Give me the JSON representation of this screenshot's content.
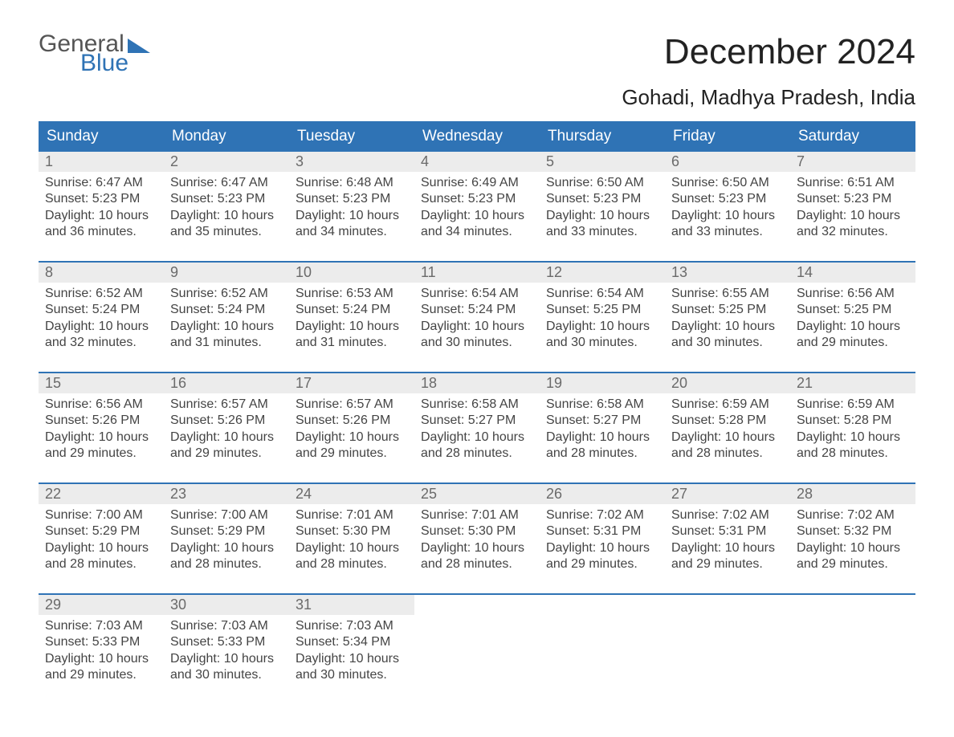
{
  "logo": {
    "general": "General",
    "blue": "Blue"
  },
  "title": "December 2024",
  "location": "Gohadi, Madhya Pradesh, India",
  "colors": {
    "header_bg": "#2f73b5",
    "header_text": "#ffffff",
    "daynum_bg": "#ececec",
    "daynum_text": "#6a6a6a",
    "body_text": "#444444",
    "rule": "#2f73b5",
    "page_bg": "#ffffff"
  },
  "typography": {
    "title_fontsize": 44,
    "location_fontsize": 26,
    "dow_fontsize": 19,
    "daynum_fontsize": 18,
    "body_fontsize": 16
  },
  "dow": [
    "Sunday",
    "Monday",
    "Tuesday",
    "Wednesday",
    "Thursday",
    "Friday",
    "Saturday"
  ],
  "weeks": [
    [
      {
        "n": "1",
        "sr": "Sunrise: 6:47 AM",
        "ss": "Sunset: 5:23 PM",
        "d1": "Daylight: 10 hours",
        "d2": "and 36 minutes."
      },
      {
        "n": "2",
        "sr": "Sunrise: 6:47 AM",
        "ss": "Sunset: 5:23 PM",
        "d1": "Daylight: 10 hours",
        "d2": "and 35 minutes."
      },
      {
        "n": "3",
        "sr": "Sunrise: 6:48 AM",
        "ss": "Sunset: 5:23 PM",
        "d1": "Daylight: 10 hours",
        "d2": "and 34 minutes."
      },
      {
        "n": "4",
        "sr": "Sunrise: 6:49 AM",
        "ss": "Sunset: 5:23 PM",
        "d1": "Daylight: 10 hours",
        "d2": "and 34 minutes."
      },
      {
        "n": "5",
        "sr": "Sunrise: 6:50 AM",
        "ss": "Sunset: 5:23 PM",
        "d1": "Daylight: 10 hours",
        "d2": "and 33 minutes."
      },
      {
        "n": "6",
        "sr": "Sunrise: 6:50 AM",
        "ss": "Sunset: 5:23 PM",
        "d1": "Daylight: 10 hours",
        "d2": "and 33 minutes."
      },
      {
        "n": "7",
        "sr": "Sunrise: 6:51 AM",
        "ss": "Sunset: 5:23 PM",
        "d1": "Daylight: 10 hours",
        "d2": "and 32 minutes."
      }
    ],
    [
      {
        "n": "8",
        "sr": "Sunrise: 6:52 AM",
        "ss": "Sunset: 5:24 PM",
        "d1": "Daylight: 10 hours",
        "d2": "and 32 minutes."
      },
      {
        "n": "9",
        "sr": "Sunrise: 6:52 AM",
        "ss": "Sunset: 5:24 PM",
        "d1": "Daylight: 10 hours",
        "d2": "and 31 minutes."
      },
      {
        "n": "10",
        "sr": "Sunrise: 6:53 AM",
        "ss": "Sunset: 5:24 PM",
        "d1": "Daylight: 10 hours",
        "d2": "and 31 minutes."
      },
      {
        "n": "11",
        "sr": "Sunrise: 6:54 AM",
        "ss": "Sunset: 5:24 PM",
        "d1": "Daylight: 10 hours",
        "d2": "and 30 minutes."
      },
      {
        "n": "12",
        "sr": "Sunrise: 6:54 AM",
        "ss": "Sunset: 5:25 PM",
        "d1": "Daylight: 10 hours",
        "d2": "and 30 minutes."
      },
      {
        "n": "13",
        "sr": "Sunrise: 6:55 AM",
        "ss": "Sunset: 5:25 PM",
        "d1": "Daylight: 10 hours",
        "d2": "and 30 minutes."
      },
      {
        "n": "14",
        "sr": "Sunrise: 6:56 AM",
        "ss": "Sunset: 5:25 PM",
        "d1": "Daylight: 10 hours",
        "d2": "and 29 minutes."
      }
    ],
    [
      {
        "n": "15",
        "sr": "Sunrise: 6:56 AM",
        "ss": "Sunset: 5:26 PM",
        "d1": "Daylight: 10 hours",
        "d2": "and 29 minutes."
      },
      {
        "n": "16",
        "sr": "Sunrise: 6:57 AM",
        "ss": "Sunset: 5:26 PM",
        "d1": "Daylight: 10 hours",
        "d2": "and 29 minutes."
      },
      {
        "n": "17",
        "sr": "Sunrise: 6:57 AM",
        "ss": "Sunset: 5:26 PM",
        "d1": "Daylight: 10 hours",
        "d2": "and 29 minutes."
      },
      {
        "n": "18",
        "sr": "Sunrise: 6:58 AM",
        "ss": "Sunset: 5:27 PM",
        "d1": "Daylight: 10 hours",
        "d2": "and 28 minutes."
      },
      {
        "n": "19",
        "sr": "Sunrise: 6:58 AM",
        "ss": "Sunset: 5:27 PM",
        "d1": "Daylight: 10 hours",
        "d2": "and 28 minutes."
      },
      {
        "n": "20",
        "sr": "Sunrise: 6:59 AM",
        "ss": "Sunset: 5:28 PM",
        "d1": "Daylight: 10 hours",
        "d2": "and 28 minutes."
      },
      {
        "n": "21",
        "sr": "Sunrise: 6:59 AM",
        "ss": "Sunset: 5:28 PM",
        "d1": "Daylight: 10 hours",
        "d2": "and 28 minutes."
      }
    ],
    [
      {
        "n": "22",
        "sr": "Sunrise: 7:00 AM",
        "ss": "Sunset: 5:29 PM",
        "d1": "Daylight: 10 hours",
        "d2": "and 28 minutes."
      },
      {
        "n": "23",
        "sr": "Sunrise: 7:00 AM",
        "ss": "Sunset: 5:29 PM",
        "d1": "Daylight: 10 hours",
        "d2": "and 28 minutes."
      },
      {
        "n": "24",
        "sr": "Sunrise: 7:01 AM",
        "ss": "Sunset: 5:30 PM",
        "d1": "Daylight: 10 hours",
        "d2": "and 28 minutes."
      },
      {
        "n": "25",
        "sr": "Sunrise: 7:01 AM",
        "ss": "Sunset: 5:30 PM",
        "d1": "Daylight: 10 hours",
        "d2": "and 28 minutes."
      },
      {
        "n": "26",
        "sr": "Sunrise: 7:02 AM",
        "ss": "Sunset: 5:31 PM",
        "d1": "Daylight: 10 hours",
        "d2": "and 29 minutes."
      },
      {
        "n": "27",
        "sr": "Sunrise: 7:02 AM",
        "ss": "Sunset: 5:31 PM",
        "d1": "Daylight: 10 hours",
        "d2": "and 29 minutes."
      },
      {
        "n": "28",
        "sr": "Sunrise: 7:02 AM",
        "ss": "Sunset: 5:32 PM",
        "d1": "Daylight: 10 hours",
        "d2": "and 29 minutes."
      }
    ],
    [
      {
        "n": "29",
        "sr": "Sunrise: 7:03 AM",
        "ss": "Sunset: 5:33 PM",
        "d1": "Daylight: 10 hours",
        "d2": "and 29 minutes."
      },
      {
        "n": "30",
        "sr": "Sunrise: 7:03 AM",
        "ss": "Sunset: 5:33 PM",
        "d1": "Daylight: 10 hours",
        "d2": "and 30 minutes."
      },
      {
        "n": "31",
        "sr": "Sunrise: 7:03 AM",
        "ss": "Sunset: 5:34 PM",
        "d1": "Daylight: 10 hours",
        "d2": "and 30 minutes."
      },
      {
        "n": "",
        "sr": "",
        "ss": "",
        "d1": "",
        "d2": ""
      },
      {
        "n": "",
        "sr": "",
        "ss": "",
        "d1": "",
        "d2": ""
      },
      {
        "n": "",
        "sr": "",
        "ss": "",
        "d1": "",
        "d2": ""
      },
      {
        "n": "",
        "sr": "",
        "ss": "",
        "d1": "",
        "d2": ""
      }
    ]
  ]
}
